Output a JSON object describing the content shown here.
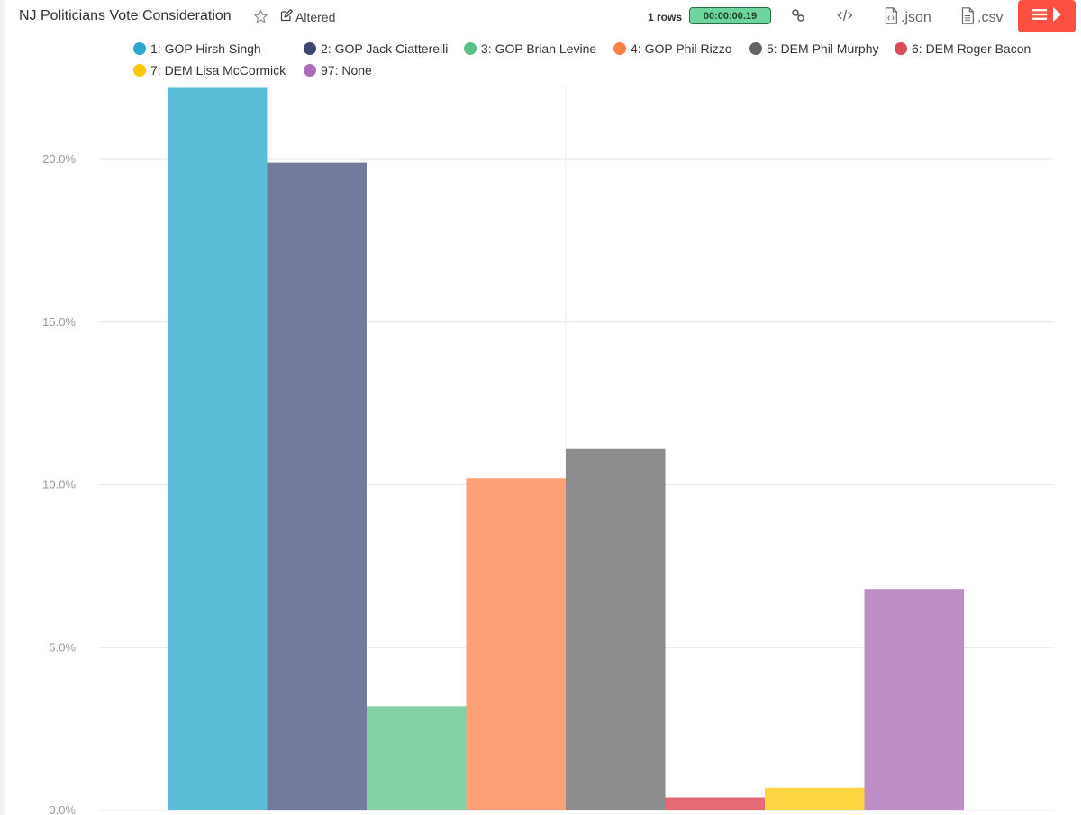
{
  "header": {
    "title": "NJ Politicians Vote Consideration",
    "altered_label": "Altered",
    "rows_label": "1 rows",
    "timer": "00:00:00.19",
    "json_label": ".json",
    "csv_label": ".csv"
  },
  "colors": {
    "accent": "#fc5043",
    "timer_bg": "#6dd49b"
  },
  "chart_data": {
    "type": "bar",
    "title": "NJ Politicians Vote Consideration",
    "xlabel": "",
    "ylabel": "",
    "ylim": [
      0,
      22.2
    ],
    "yticks": [
      0,
      5,
      10,
      15,
      20
    ],
    "ytick_labels": [
      "0.0%",
      "5.0%",
      "10.0%",
      "15.0%",
      "20.0%"
    ],
    "grid": true,
    "legend_position": "top",
    "series": [
      {
        "name": "1: GOP Hirsh Singh",
        "value": 22.2,
        "color": "#5bbdd8",
        "legend_color": "#2ea7cc"
      },
      {
        "name": "2: GOP Jack Ciatterelli",
        "value": 19.9,
        "color": "#737b9c",
        "legend_color": "#3f4670"
      },
      {
        "name": "3: GOP Brian Levine",
        "value": 3.2,
        "color": "#83d1a5",
        "legend_color": "#5ac086"
      },
      {
        "name": "4: GOP Phil Rizzo",
        "value": 10.2,
        "color": "#fda076",
        "legend_color": "#fb8348"
      },
      {
        "name": "5: DEM Phil Murphy",
        "value": 11.1,
        "color": "#8c8c8c",
        "legend_color": "#646464"
      },
      {
        "name": "6: DEM Roger Bacon",
        "value": 0.4,
        "color": "#e46a76",
        "legend_color": "#d94b59"
      },
      {
        "name": "7: DEM Lisa McCormick",
        "value": 0.7,
        "color": "#fdd543",
        "legend_color": "#f7c800"
      },
      {
        "name": "97: None",
        "value": 6.8,
        "color": "#bf8ec7",
        "legend_color": "#a96cb6"
      }
    ]
  }
}
